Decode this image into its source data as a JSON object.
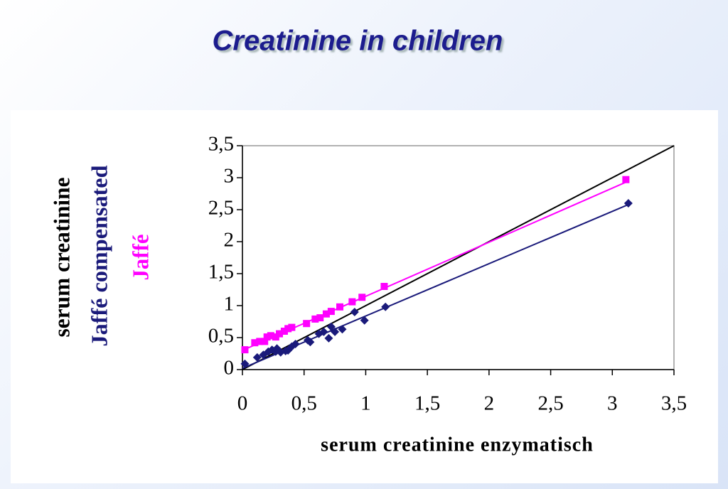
{
  "chart_data": {
    "type": "scatter",
    "title": "Creatinine in children",
    "xlabel": "serum creatinine enzymatisch",
    "ylabel": "serum creatinine",
    "xlim": [
      0,
      3.5
    ],
    "ylim": [
      0,
      3.5
    ],
    "xticks": [
      0,
      {
        "value": 0.5,
        "label": "0,5"
      },
      1,
      {
        "value": 1.5,
        "label": "1,5"
      },
      2,
      {
        "value": 2.5,
        "label": "2,5"
      },
      3,
      {
        "value": 3.5,
        "label": "3,5"
      }
    ],
    "yticks": [
      0,
      {
        "value": 0.5,
        "label": "0,5"
      },
      1,
      {
        "value": 1.5,
        "label": "1,5"
      },
      2,
      {
        "value": 2.5,
        "label": "2,5"
      },
      3,
      {
        "value": 3.5,
        "label": "3,5"
      }
    ],
    "reference_line": {
      "color": "#000000",
      "x": [
        0,
        3.5
      ],
      "y": [
        0,
        3.5
      ]
    },
    "series": [
      {
        "name": "Jaffé compensated",
        "color": "#1a1a7a",
        "marker": "diamond",
        "x": [
          0.02,
          0.12,
          0.17,
          0.21,
          0.24,
          0.27,
          0.28,
          0.31,
          0.35,
          0.37,
          0.4,
          0.43,
          0.53,
          0.55,
          0.62,
          0.66,
          0.7,
          0.72,
          0.75,
          0.81,
          0.91,
          0.99,
          1.16,
          3.13
        ],
        "values": [
          0.09,
          0.19,
          0.23,
          0.28,
          0.31,
          0.28,
          0.33,
          0.27,
          0.29,
          0.3,
          0.36,
          0.4,
          0.46,
          0.43,
          0.56,
          0.59,
          0.49,
          0.67,
          0.59,
          0.63,
          0.9,
          0.77,
          0.98,
          2.6
        ],
        "trendline": {
          "x": [
            0,
            3.13
          ],
          "y": [
            0.02,
            2.58
          ]
        }
      },
      {
        "name": "Jaffé",
        "color": "#ff00ff",
        "marker": "square",
        "x": [
          0.02,
          0.1,
          0.14,
          0.18,
          0.2,
          0.23,
          0.27,
          0.3,
          0.34,
          0.37,
          0.4,
          0.52,
          0.59,
          0.63,
          0.68,
          0.72,
          0.79,
          0.89,
          0.97,
          1.15,
          3.11
        ],
        "values": [
          0.31,
          0.42,
          0.44,
          0.44,
          0.51,
          0.53,
          0.51,
          0.56,
          0.6,
          0.64,
          0.66,
          0.72,
          0.79,
          0.81,
          0.87,
          0.91,
          0.98,
          1.06,
          1.13,
          1.3,
          2.97
        ],
        "trendline": {
          "x": [
            0,
            3.11
          ],
          "y": [
            0.3,
            2.93
          ]
        }
      }
    ]
  }
}
